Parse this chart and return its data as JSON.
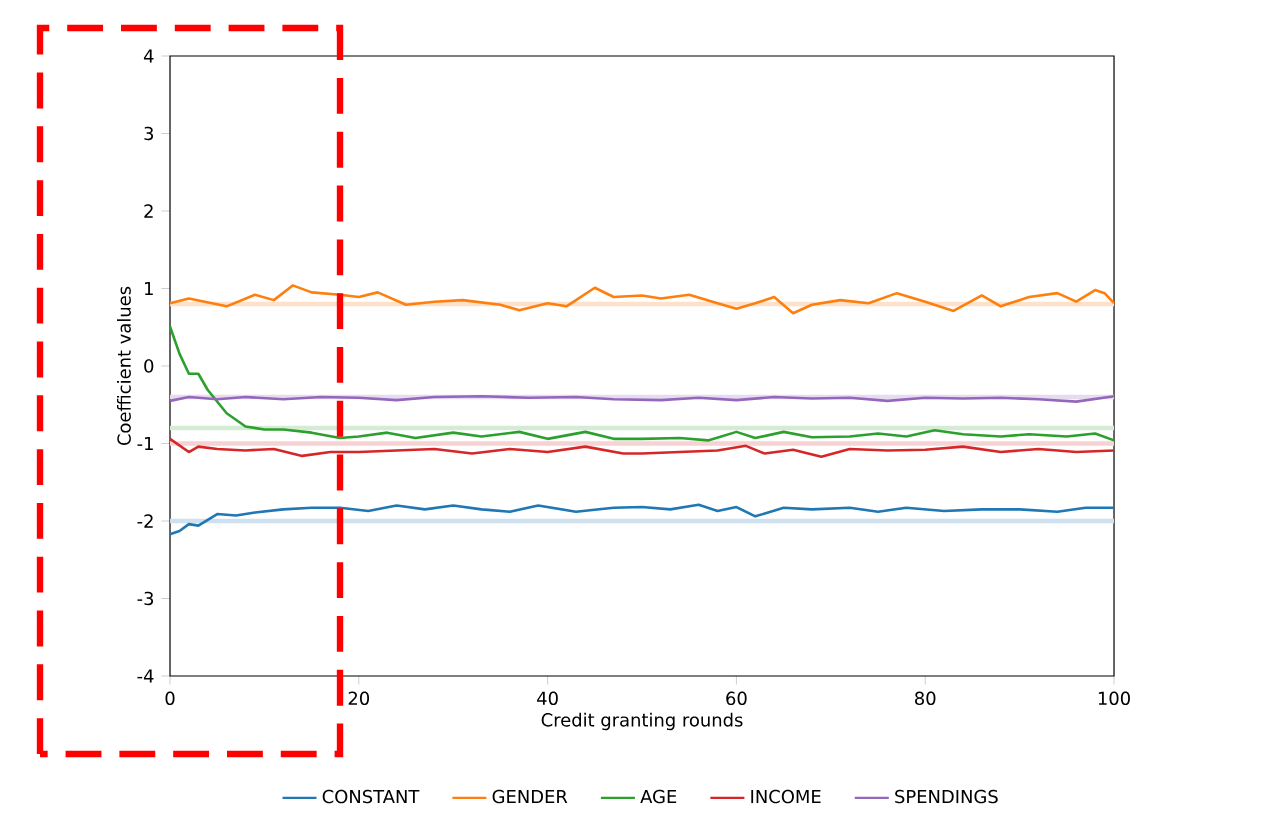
{
  "chart_data": {
    "type": "line",
    "xlabel": "Credit granting rounds",
    "ylabel": "Coefficient values",
    "xlim": [
      0,
      100
    ],
    "ylim": [
      -4,
      4
    ],
    "xticks": [
      0,
      20,
      40,
      60,
      80,
      100
    ],
    "yticks": [
      -4,
      -3,
      -2,
      -1,
      0,
      1,
      2,
      3,
      4
    ],
    "grid": false,
    "legend": "bottom",
    "marker": "none",
    "line_style": "solid",
    "series": [
      {
        "name": "CONSTANT",
        "color": "#1f77b4",
        "x": [
          0,
          1,
          2,
          3,
          5,
          7,
          9,
          12,
          15,
          18,
          21,
          24,
          27,
          30,
          33,
          36,
          39,
          43,
          47,
          50,
          53,
          56,
          58,
          60,
          62,
          65,
          68,
          72,
          75,
          78,
          82,
          86,
          90,
          94,
          97,
          100
        ],
        "values": [
          -2.17,
          -2.13,
          -2.04,
          -2.06,
          -1.91,
          -1.93,
          -1.89,
          -1.85,
          -1.83,
          -1.83,
          -1.87,
          -1.8,
          -1.85,
          -1.8,
          -1.85,
          -1.88,
          -1.8,
          -1.88,
          -1.83,
          -1.82,
          -1.85,
          -1.79,
          -1.87,
          -1.82,
          -1.94,
          -1.83,
          -1.85,
          -1.83,
          -1.88,
          -1.83,
          -1.87,
          -1.85,
          -1.85,
          -1.88,
          -1.83,
          -1.83
        ]
      },
      {
        "name": "GENDER",
        "color": "#ff7f0e",
        "x": [
          0,
          2,
          6,
          9,
          11,
          13,
          15,
          18,
          20,
          22,
          25,
          28,
          31,
          35,
          37,
          40,
          42,
          45,
          47,
          50,
          52,
          55,
          58,
          60,
          62,
          64,
          66,
          68,
          71,
          74,
          77,
          80,
          83,
          86,
          88,
          91,
          94,
          96,
          98,
          99,
          100
        ],
        "values": [
          0.81,
          0.87,
          0.77,
          0.92,
          0.85,
          1.04,
          0.95,
          0.92,
          0.89,
          0.95,
          0.79,
          0.83,
          0.85,
          0.79,
          0.72,
          0.81,
          0.77,
          1.01,
          0.89,
          0.91,
          0.87,
          0.92,
          0.81,
          0.74,
          0.81,
          0.89,
          0.68,
          0.79,
          0.85,
          0.81,
          0.94,
          0.83,
          0.71,
          0.91,
          0.77,
          0.89,
          0.94,
          0.83,
          0.98,
          0.94,
          0.81
        ]
      },
      {
        "name": "AGE",
        "color": "#2ca02c",
        "x": [
          0,
          1,
          2,
          3,
          4,
          6,
          8,
          10,
          12,
          15,
          18,
          20,
          23,
          26,
          30,
          33,
          37,
          40,
          44,
          47,
          50,
          54,
          57,
          60,
          62,
          65,
          68,
          72,
          75,
          78,
          81,
          84,
          88,
          91,
          95,
          98,
          100
        ],
        "values": [
          0.51,
          0.16,
          -0.1,
          -0.1,
          -0.31,
          -0.61,
          -0.78,
          -0.82,
          -0.82,
          -0.86,
          -0.93,
          -0.91,
          -0.86,
          -0.93,
          -0.86,
          -0.91,
          -0.85,
          -0.94,
          -0.85,
          -0.94,
          -0.94,
          -0.93,
          -0.96,
          -0.85,
          -0.93,
          -0.85,
          -0.92,
          -0.91,
          -0.87,
          -0.91,
          -0.83,
          -0.88,
          -0.91,
          -0.88,
          -0.91,
          -0.87,
          -0.96
        ]
      },
      {
        "name": "INCOME",
        "color": "#d62728",
        "x": [
          0,
          2,
          3,
          5,
          8,
          11,
          14,
          17,
          20,
          24,
          28,
          32,
          36,
          40,
          44,
          48,
          50,
          54,
          58,
          61,
          63,
          66,
          69,
          72,
          76,
          80,
          84,
          88,
          92,
          96,
          100
        ],
        "values": [
          -0.94,
          -1.11,
          -1.04,
          -1.07,
          -1.09,
          -1.07,
          -1.16,
          -1.11,
          -1.11,
          -1.09,
          -1.07,
          -1.13,
          -1.07,
          -1.11,
          -1.04,
          -1.13,
          -1.13,
          -1.11,
          -1.09,
          -1.03,
          -1.13,
          -1.08,
          -1.17,
          -1.07,
          -1.09,
          -1.08,
          -1.04,
          -1.11,
          -1.07,
          -1.11,
          -1.09
        ]
      },
      {
        "name": "SPENDINGS",
        "color": "#9467bd",
        "x": [
          0,
          2,
          5,
          8,
          12,
          16,
          20,
          24,
          28,
          33,
          38,
          43,
          47,
          52,
          56,
          60,
          64,
          68,
          72,
          76,
          80,
          84,
          88,
          92,
          96,
          100
        ],
        "values": [
          -0.45,
          -0.4,
          -0.43,
          -0.4,
          -0.43,
          -0.4,
          -0.41,
          -0.44,
          -0.4,
          -0.39,
          -0.41,
          -0.4,
          -0.43,
          -0.44,
          -0.41,
          -0.44,
          -0.4,
          -0.42,
          -0.41,
          -0.45,
          -0.41,
          -0.42,
          -0.41,
          -0.43,
          -0.46,
          -0.39
        ]
      }
    ],
    "ref_lines": [
      {
        "axis": "y",
        "value": 0.8,
        "color": "#ffe0c8"
      },
      {
        "axis": "y",
        "value": -0.4,
        "color": "#e6dcf0"
      },
      {
        "axis": "y",
        "value": -0.8,
        "color": "#d4ecd4"
      },
      {
        "axis": "y",
        "value": -1.0,
        "color": "#f6d2d2"
      },
      {
        "axis": "y",
        "value": -2.0,
        "color": "#cfe0ef"
      }
    ]
  }
}
